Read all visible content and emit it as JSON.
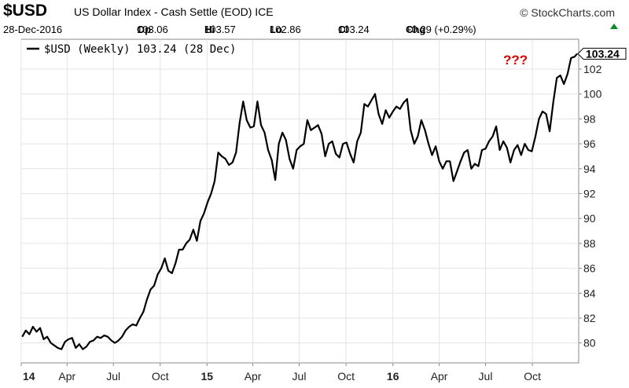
{
  "header": {
    "symbol": "$USD",
    "name": "US Dollar Index - Cash Settle (EOD)",
    "exchange": "ICE",
    "brand": "© StockCharts.com",
    "date": "28-Dec-2016",
    "open_label": "Op",
    "open": "103.06",
    "high_label": "Hi",
    "high": "103.57",
    "low_label": "Lo",
    "low": "102.86",
    "close_label": "Cl",
    "close": "103.24",
    "change_label": "Chg",
    "change": "+0.29 (+0.29%)",
    "change_color": "#0a8a2a"
  },
  "annotation": {
    "text": "???",
    "color": "#dd0000"
  },
  "chart_data": {
    "type": "line",
    "legend": "$USD (Weekly) 103.24 (28 Dec)",
    "last_value_label": "103.24",
    "ylim": [
      78.4,
      104.4
    ],
    "y_ticks": [
      80,
      82,
      84,
      86,
      88,
      90,
      92,
      94,
      96,
      98,
      100,
      102
    ],
    "x_tick_labels": [
      "14",
      "Apr",
      "Jul",
      "Oct",
      "15",
      "Apr",
      "Jul",
      "Oct",
      "16",
      "Apr",
      "Jul",
      "Oct"
    ],
    "x_tick_bold": [
      true,
      false,
      false,
      false,
      true,
      false,
      false,
      false,
      true,
      false,
      false,
      false
    ],
    "x_ticks": [
      "2014-01-01",
      "2014-04-01",
      "2014-07-01",
      "2014-10-01",
      "2015-01-01",
      "2015-04-01",
      "2015-07-01",
      "2015-10-01",
      "2016-01-01",
      "2016-04-01",
      "2016-07-01",
      "2016-10-01"
    ],
    "x_range": [
      "2014-01-01",
      "2016-12-31"
    ],
    "grid": true,
    "series": [
      {
        "color": "#000000",
        "points": [
          [
            "2014-01-03",
            80.5
          ],
          [
            "2014-01-10",
            81.0
          ],
          [
            "2014-01-17",
            80.7
          ],
          [
            "2014-01-24",
            81.3
          ],
          [
            "2014-01-31",
            80.9
          ],
          [
            "2014-02-07",
            81.2
          ],
          [
            "2014-02-14",
            80.3
          ],
          [
            "2014-02-21",
            80.5
          ],
          [
            "2014-02-28",
            80.0
          ],
          [
            "2014-03-07",
            79.8
          ],
          [
            "2014-03-14",
            79.6
          ],
          [
            "2014-03-21",
            79.5
          ],
          [
            "2014-03-28",
            80.1
          ],
          [
            "2014-04-04",
            80.3
          ],
          [
            "2014-04-11",
            80.4
          ],
          [
            "2014-04-18",
            79.6
          ],
          [
            "2014-04-25",
            79.9
          ],
          [
            "2014-05-02",
            79.5
          ],
          [
            "2014-05-09",
            79.7
          ],
          [
            "2014-05-16",
            80.1
          ],
          [
            "2014-05-23",
            80.2
          ],
          [
            "2014-05-30",
            80.5
          ],
          [
            "2014-06-06",
            80.4
          ],
          [
            "2014-06-13",
            80.6
          ],
          [
            "2014-06-20",
            80.5
          ],
          [
            "2014-06-27",
            80.2
          ],
          [
            "2014-07-04",
            80.0
          ],
          [
            "2014-07-11",
            80.2
          ],
          [
            "2014-07-18",
            80.5
          ],
          [
            "2014-07-25",
            81.0
          ],
          [
            "2014-08-01",
            81.3
          ],
          [
            "2014-08-08",
            81.5
          ],
          [
            "2014-08-15",
            81.4
          ],
          [
            "2014-08-22",
            82.0
          ],
          [
            "2014-08-29",
            82.5
          ],
          [
            "2014-09-05",
            83.5
          ],
          [
            "2014-09-12",
            84.3
          ],
          [
            "2014-09-19",
            84.6
          ],
          [
            "2014-09-26",
            85.5
          ],
          [
            "2014-10-03",
            86.0
          ],
          [
            "2014-10-10",
            86.8
          ],
          [
            "2014-10-17",
            85.8
          ],
          [
            "2014-10-24",
            85.6
          ],
          [
            "2014-10-31",
            86.4
          ],
          [
            "2014-11-07",
            87.5
          ],
          [
            "2014-11-14",
            87.5
          ],
          [
            "2014-11-21",
            88.0
          ],
          [
            "2014-11-28",
            88.3
          ],
          [
            "2014-12-05",
            89.1
          ],
          [
            "2014-12-12",
            88.2
          ],
          [
            "2014-12-19",
            89.8
          ],
          [
            "2014-12-26",
            90.4
          ],
          [
            "2015-01-02",
            91.3
          ],
          [
            "2015-01-09",
            92.0
          ],
          [
            "2015-01-16",
            93.0
          ],
          [
            "2015-01-23",
            95.3
          ],
          [
            "2015-01-30",
            95.0
          ],
          [
            "2015-02-06",
            94.8
          ],
          [
            "2015-02-13",
            94.3
          ],
          [
            "2015-02-20",
            94.5
          ],
          [
            "2015-02-27",
            95.3
          ],
          [
            "2015-03-06",
            97.7
          ],
          [
            "2015-03-13",
            99.4
          ],
          [
            "2015-03-20",
            97.9
          ],
          [
            "2015-03-27",
            97.3
          ],
          [
            "2015-04-03",
            97.4
          ],
          [
            "2015-04-10",
            99.4
          ],
          [
            "2015-04-17",
            97.5
          ],
          [
            "2015-04-24",
            96.9
          ],
          [
            "2015-05-01",
            95.5
          ],
          [
            "2015-05-08",
            94.7
          ],
          [
            "2015-05-15",
            93.1
          ],
          [
            "2015-05-22",
            96.0
          ],
          [
            "2015-05-29",
            96.9
          ],
          [
            "2015-06-05",
            96.3
          ],
          [
            "2015-06-12",
            94.8
          ],
          [
            "2015-06-19",
            94.0
          ],
          [
            "2015-06-26",
            95.5
          ],
          [
            "2015-07-03",
            95.8
          ],
          [
            "2015-07-10",
            96.0
          ],
          [
            "2015-07-17",
            97.9
          ],
          [
            "2015-07-24",
            97.1
          ],
          [
            "2015-07-31",
            97.3
          ],
          [
            "2015-08-07",
            97.5
          ],
          [
            "2015-08-14",
            96.8
          ],
          [
            "2015-08-21",
            95.0
          ],
          [
            "2015-08-28",
            96.0
          ],
          [
            "2015-09-04",
            96.2
          ],
          [
            "2015-09-11",
            95.2
          ],
          [
            "2015-09-18",
            94.9
          ],
          [
            "2015-09-25",
            96.0
          ],
          [
            "2015-10-02",
            96.1
          ],
          [
            "2015-10-09",
            95.2
          ],
          [
            "2015-10-16",
            94.5
          ],
          [
            "2015-10-23",
            96.2
          ],
          [
            "2015-10-30",
            96.9
          ],
          [
            "2015-11-06",
            99.2
          ],
          [
            "2015-11-13",
            99.0
          ],
          [
            "2015-11-20",
            99.5
          ],
          [
            "2015-11-27",
            100.0
          ],
          [
            "2015-12-04",
            98.4
          ],
          [
            "2015-12-11",
            97.6
          ],
          [
            "2015-12-18",
            98.7
          ],
          [
            "2015-12-25",
            98.1
          ],
          [
            "2016-01-01",
            98.6
          ],
          [
            "2016-01-08",
            99.0
          ],
          [
            "2016-01-15",
            98.8
          ],
          [
            "2016-01-22",
            99.3
          ],
          [
            "2016-01-29",
            99.6
          ],
          [
            "2016-02-05",
            97.1
          ],
          [
            "2016-02-12",
            96.0
          ],
          [
            "2016-02-19",
            96.6
          ],
          [
            "2016-02-26",
            97.9
          ],
          [
            "2016-03-04",
            97.1
          ],
          [
            "2016-03-11",
            96.0
          ],
          [
            "2016-03-18",
            95.1
          ],
          [
            "2016-03-25",
            95.8
          ],
          [
            "2016-04-01",
            94.6
          ],
          [
            "2016-04-08",
            94.0
          ],
          [
            "2016-04-15",
            94.6
          ],
          [
            "2016-04-22",
            94.6
          ],
          [
            "2016-04-29",
            93.0
          ],
          [
            "2016-05-06",
            93.8
          ],
          [
            "2016-05-13",
            94.6
          ],
          [
            "2016-05-20",
            95.3
          ],
          [
            "2016-05-27",
            95.5
          ],
          [
            "2016-06-03",
            94.0
          ],
          [
            "2016-06-10",
            94.4
          ],
          [
            "2016-06-17",
            94.2
          ],
          [
            "2016-06-24",
            95.5
          ],
          [
            "2016-07-01",
            95.6
          ],
          [
            "2016-07-08",
            96.2
          ],
          [
            "2016-07-15",
            96.6
          ],
          [
            "2016-07-22",
            97.4
          ],
          [
            "2016-07-29",
            95.5
          ],
          [
            "2016-08-05",
            96.2
          ],
          [
            "2016-08-12",
            95.7
          ],
          [
            "2016-08-19",
            94.5
          ],
          [
            "2016-08-26",
            95.5
          ],
          [
            "2016-09-02",
            95.9
          ],
          [
            "2016-09-09",
            95.1
          ],
          [
            "2016-09-16",
            96.0
          ],
          [
            "2016-09-23",
            95.5
          ],
          [
            "2016-09-30",
            95.4
          ],
          [
            "2016-10-07",
            96.6
          ],
          [
            "2016-10-14",
            98.0
          ],
          [
            "2016-10-21",
            98.6
          ],
          [
            "2016-10-28",
            98.4
          ],
          [
            "2016-11-04",
            97.0
          ],
          [
            "2016-11-11",
            99.3
          ],
          [
            "2016-11-18",
            101.3
          ],
          [
            "2016-11-25",
            101.5
          ],
          [
            "2016-12-02",
            100.8
          ],
          [
            "2016-12-09",
            101.6
          ],
          [
            "2016-12-16",
            102.9
          ],
          [
            "2016-12-23",
            103.0
          ],
          [
            "2016-12-28",
            103.24
          ]
        ]
      }
    ]
  }
}
